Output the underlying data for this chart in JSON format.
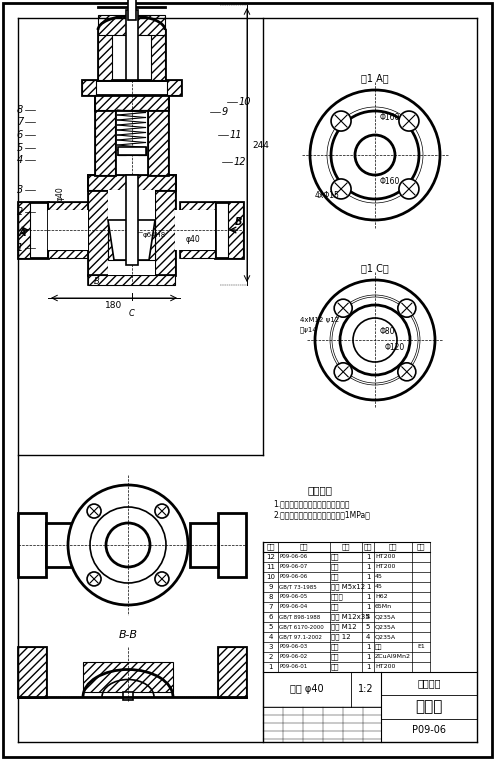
{
  "bg_color": "#ffffff",
  "line_color": "#000000",
  "title": "回油阀",
  "school": "江办大学",
  "drawing_no": "P09-06",
  "scale": "规格 φ40",
  "ratio": "1:2",
  "tech_requirements": [
    "技术要求",
    "1.阀门与阀体之间检验合页量项面。",
    "2.当阀门关闭后，高压帮勾密封压1MPa。"
  ],
  "parts_table": [
    [
      "12",
      "P09-06-06",
      "阀盖",
      "1",
      "HT200",
      ""
    ],
    [
      "11",
      "P09-06-07",
      "阀帽",
      "1",
      "HT200",
      ""
    ],
    [
      "10",
      "P09-06-06",
      "管轩",
      "1",
      "45",
      ""
    ],
    [
      "9",
      "GB/T 73-1985",
      "螺钉 M5x12",
      "1",
      "45",
      ""
    ],
    [
      "8",
      "P09-06-05",
      "弹簧座",
      "1",
      "H62",
      ""
    ],
    [
      "7",
      "P09-06-04",
      "弹簧",
      "1",
      "65Mn",
      ""
    ],
    [
      "6",
      "GB/T 898-1988",
      "螺柱 M12x35",
      "4",
      "Q235A",
      ""
    ],
    [
      "5",
      "GB/T 6170-2000",
      "螺母 M12",
      "5",
      "Q235A",
      ""
    ],
    [
      "4",
      "GB/T 97.1-2002",
      "垫圈 12",
      "4",
      "Q235A",
      ""
    ],
    [
      "3",
      "P09-06-03",
      "垫片",
      "1",
      "铜板",
      "E1"
    ],
    [
      "2",
      "P09-06-02",
      "阀门",
      "1",
      "ZCuAl9Mn2",
      ""
    ],
    [
      "1",
      "P09-06-01",
      "阀体",
      "1",
      "HT200",
      ""
    ]
  ]
}
